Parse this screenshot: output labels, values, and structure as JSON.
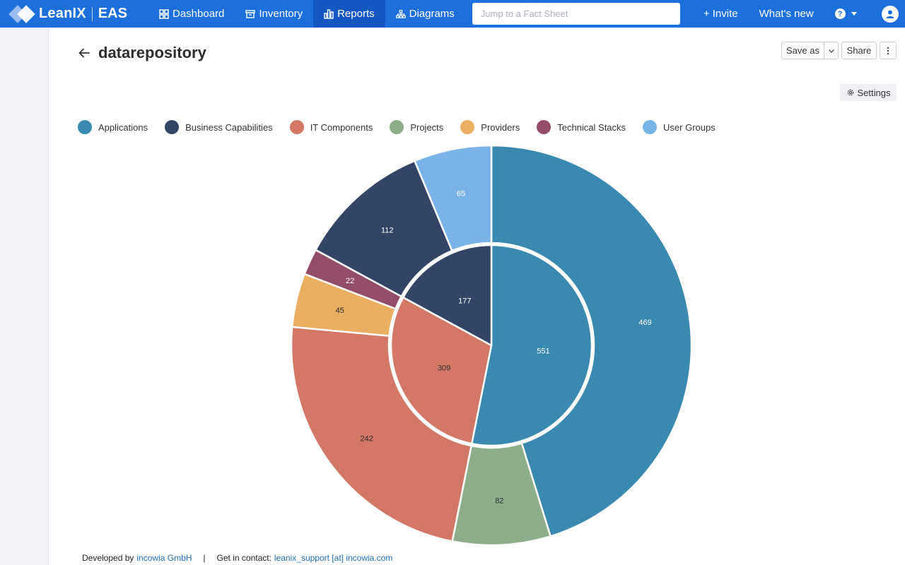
{
  "brand": {
    "name": "LeanIX",
    "product": "EAS"
  },
  "nav": {
    "dashboard": "Dashboard",
    "inventory": "Inventory",
    "reports": "Reports",
    "diagrams": "Diagrams"
  },
  "search": {
    "placeholder": "Jump to a Fact Sheet"
  },
  "header_actions": {
    "invite": "+ Invite",
    "whats_new": "What's new"
  },
  "page": {
    "title": "datarepository"
  },
  "toolbar": {
    "save_as": "Save as",
    "share": "Share",
    "settings": "Settings"
  },
  "legend": [
    {
      "label": "Applications",
      "color": "#3a89b0"
    },
    {
      "label": "Business Capabilities",
      "color": "#334466"
    },
    {
      "label": "IT Components",
      "color": "#d37767"
    },
    {
      "label": "Projects",
      "color": "#8ead8b"
    },
    {
      "label": "Providers",
      "color": "#ebaf61"
    },
    {
      "label": "Technical Stacks",
      "color": "#944d69"
    },
    {
      "label": "User Groups",
      "color": "#7ab3e8"
    }
  ],
  "chart_data": {
    "type": "pie",
    "variant": "sunburst",
    "inner": [
      {
        "category": "Applications",
        "value": 551
      },
      {
        "category": "IT Components",
        "value": 309
      },
      {
        "category": "Business Capabilities",
        "value": 177
      }
    ],
    "outer": [
      {
        "category": "Applications",
        "value": 469
      },
      {
        "category": "Projects",
        "value": 82
      },
      {
        "category": "IT Components",
        "value": 242
      },
      {
        "category": "Providers",
        "value": 45
      },
      {
        "category": "Technical Stacks",
        "value": 22
      },
      {
        "category": "Business Capabilities",
        "value": 112
      },
      {
        "category": "User Groups",
        "value": 65
      }
    ]
  },
  "footer": {
    "developed_by": "Developed by",
    "company": "incowia GmbH",
    "separator": "|",
    "contact": "Get in contact:",
    "email": "leanix_support [at] incowia.com"
  }
}
